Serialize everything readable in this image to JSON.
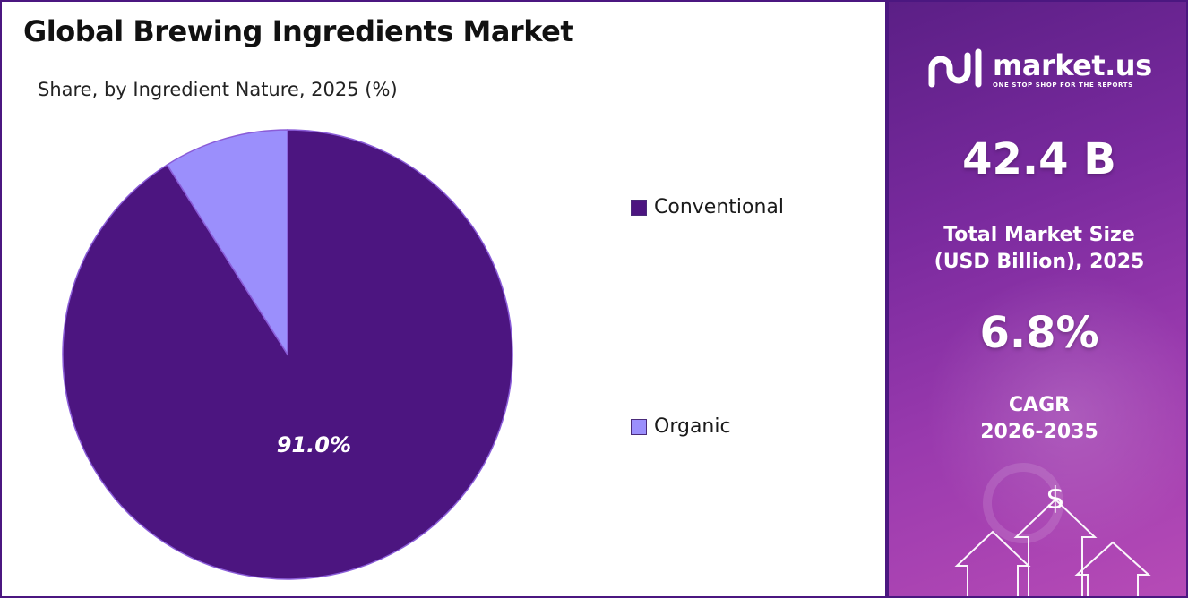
{
  "title": "Global Brewing Ingredients Market",
  "subtitle": "Share, by Ingredient Nature, 2025 (%)",
  "chart_data": {
    "type": "pie",
    "title": "Global Brewing Ingredients Market",
    "subtitle": "Share, by Ingredient Nature, 2025 (%)",
    "categories": [
      "Conventional",
      "Organic"
    ],
    "values": [
      91.0,
      9.0
    ],
    "colors": [
      "#4c1580",
      "#9b8ffc"
    ],
    "data_labels": [
      "91.0%",
      ""
    ],
    "legend_position": "right"
  },
  "legend": {
    "items": [
      {
        "label": "Conventional",
        "color": "#4c1580"
      },
      {
        "label": "Organic",
        "color": "#9b8ffc"
      }
    ]
  },
  "brand": {
    "name": "market.us",
    "tagline": "ONE STOP SHOP FOR THE REPORTS"
  },
  "stats": {
    "market_size": "42.4 B",
    "market_size_label_line1": "Total Market Size",
    "market_size_label_line2": "(USD Billion), 2025",
    "cagr": "6.8%",
    "cagr_label_line1": "CAGR",
    "cagr_label_line2": "2026-2035"
  },
  "decor": {
    "currency_symbol": "$"
  }
}
